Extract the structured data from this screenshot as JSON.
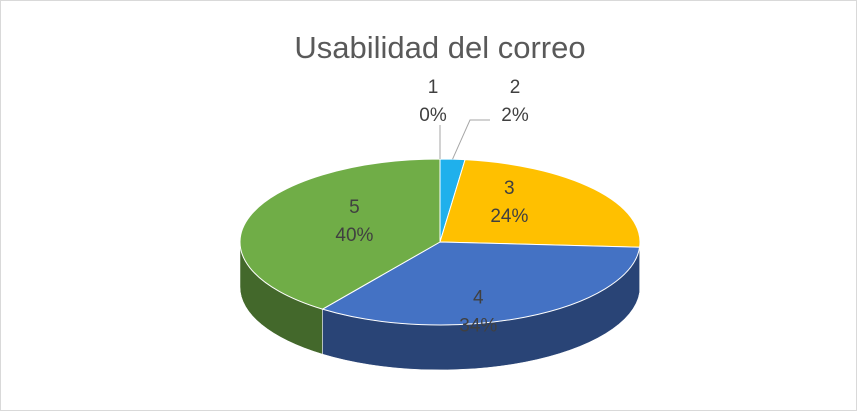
{
  "chart_data": {
    "type": "pie",
    "title": "Usabilidad del correo",
    "categories": [
      "1",
      "2",
      "3",
      "4",
      "5"
    ],
    "values": [
      0,
      2,
      24,
      34,
      40
    ],
    "value_labels": [
      "0%",
      "2%",
      "24%",
      "34%",
      "40%"
    ],
    "colors": [
      "#a5a5a5",
      "#1fb0ec",
      "#ffc000",
      "#4472c4",
      "#70ad47"
    ]
  }
}
